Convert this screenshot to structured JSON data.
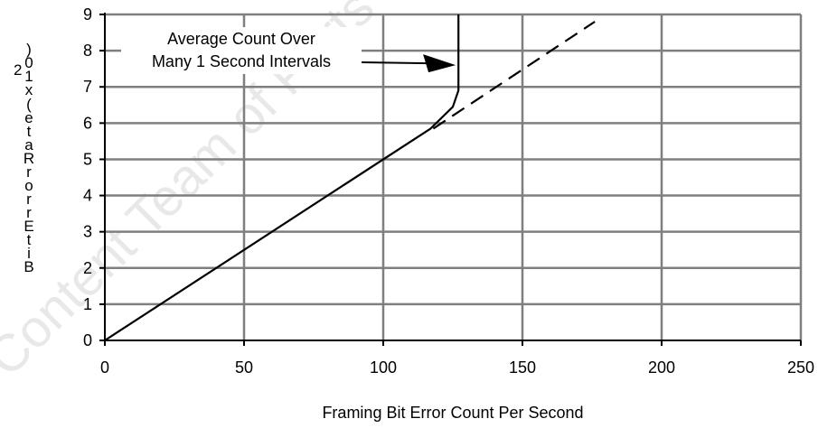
{
  "chart_data": {
    "type": "line",
    "xlabel": "Framing Bit Error Count Per Second",
    "ylabel": "Bit Error Rate (x 10)",
    "ylabel_exponent": "-2",
    "xlim": [
      0,
      250
    ],
    "ylim": [
      0,
      9
    ],
    "x_ticks": [
      "0",
      "50",
      "100",
      "150",
      "200",
      "250"
    ],
    "y_ticks": [
      "0",
      "1",
      "2",
      "3",
      "4",
      "5",
      "6",
      "7",
      "8",
      "9"
    ],
    "grid": true,
    "series": [
      {
        "style": "solid",
        "points": [
          [
            0,
            0
          ],
          [
            117,
            5.85
          ],
          [
            125,
            6.45
          ],
          [
            127,
            6.9
          ],
          [
            127,
            9
          ]
        ]
      },
      {
        "style": "dashed",
        "points": [
          [
            118,
            5.85
          ],
          [
            176,
            8.8
          ]
        ]
      }
    ],
    "annotation": {
      "lines": [
        "Average Count Over",
        "Many 1 Second Intervals"
      ],
      "arrow_target": [
        126,
        7.6
      ]
    },
    "watermark": "Content Team of Parts"
  }
}
